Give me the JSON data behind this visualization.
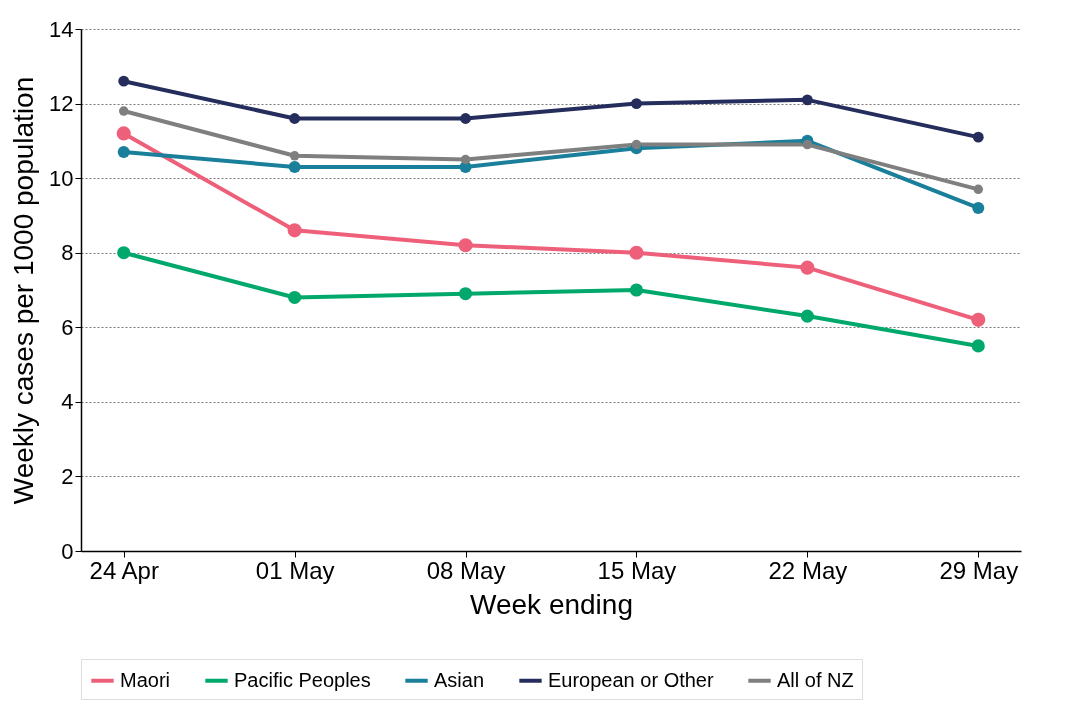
{
  "chart_data": {
    "type": "line",
    "xlabel": "Week ending",
    "ylabel": "Weekly cases per 1000 population",
    "categories": [
      "24 Apr",
      "01 May",
      "08 May",
      "15 May",
      "22 May",
      "29 May"
    ],
    "series": [
      {
        "name": "Maori",
        "color": "#ee6079",
        "values": [
          11.2,
          8.6,
          8.2,
          8.0,
          7.6,
          6.2
        ]
      },
      {
        "name": "Pacific Peoples",
        "color": "#00a86b",
        "values": [
          8.0,
          6.8,
          6.9,
          7.0,
          6.3,
          5.5
        ]
      },
      {
        "name": "Asian",
        "color": "#1a7f9a",
        "values": [
          10.7,
          10.3,
          10.3,
          10.8,
          11.0,
          9.2
        ]
      },
      {
        "name": "European or Other",
        "color": "#252d5c",
        "values": [
          12.6,
          11.6,
          11.6,
          12.0,
          12.1,
          11.1
        ]
      },
      {
        "name": "All of NZ",
        "color": "#7f7f7f",
        "values": [
          11.8,
          10.6,
          10.5,
          10.9,
          10.9,
          9.7
        ]
      }
    ],
    "ylim": [
      0,
      14
    ],
    "yticks": [
      0,
      2,
      4,
      6,
      8,
      10,
      12,
      14
    ],
    "grid": "y",
    "legend": "bottom",
    "marker": "circle",
    "line_style": "solid"
  }
}
